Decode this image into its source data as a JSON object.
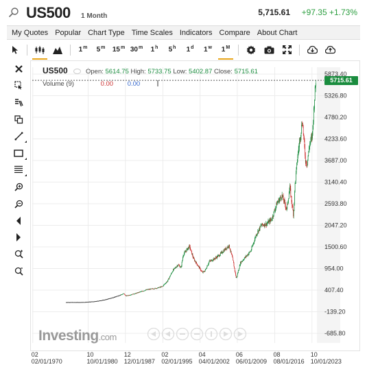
{
  "header": {
    "symbol": "US500",
    "timeframe": "1 Month",
    "price": "5,715.61",
    "change": "+97.35 +1.73%"
  },
  "menu": {
    "items": [
      "My Quotes",
      "Popular",
      "Chart Type",
      "Time Scales",
      "Indicators",
      "Compare",
      "About Chart"
    ]
  },
  "toolbar": {
    "timeframes": [
      {
        "main": "1",
        "sup": "m"
      },
      {
        "main": "5",
        "sup": "m"
      },
      {
        "main": "15",
        "sup": "m"
      },
      {
        "main": "30",
        "sup": "m"
      },
      {
        "main": "1",
        "sup": "h"
      },
      {
        "main": "5",
        "sup": "h"
      },
      {
        "main": "1",
        "sup": "d"
      },
      {
        "main": "1",
        "sup": "w"
      },
      {
        "main": "1",
        "sup": "M"
      }
    ],
    "active_timeframe": "1M"
  },
  "legend": {
    "symbol": "US500",
    "open_label": "Open:",
    "open": "5614.75",
    "high_label": "High:",
    "high": "5733.75",
    "low_label": "Low:",
    "low": "5402.87",
    "close_label": "Close:",
    "close": "5715.61",
    "volume_label": "Volume (9)",
    "volume_value": "0.00",
    "volume_ma": "0.00"
  },
  "branding": {
    "logo": "Investing",
    "logo_suffix": ".com"
  },
  "colors": {
    "up": "#1a8c3e",
    "down": "#cc2b2b",
    "accent": "#e8a51a",
    "positive": "#2a9d3e"
  },
  "chart_data": {
    "type": "candlestick",
    "title": "US500",
    "last_value": "5715.61",
    "y_ticks": [
      5873.4,
      5326.8,
      4780.2,
      4233.6,
      3687.0,
      3140.4,
      2593.8,
      2047.2,
      1500.6,
      954.0,
      407.4,
      -139.2,
      -685.8
    ],
    "y_tick_labels": [
      "5873.40",
      "5326.80",
      "4780.20",
      "4233.60",
      "3687.00",
      "3140.40",
      "2593.80",
      "2047.20",
      "1500.60",
      "954.00",
      "407.40",
      "-139.20",
      "-685.80"
    ],
    "ylim": [
      -700,
      6000
    ],
    "x_ticks_top": [
      "02",
      "10",
      "12",
      "02",
      "04",
      "06",
      "08",
      "10"
    ],
    "x_ticks_bottom": [
      "02/01/1970",
      "10/01/1980",
      "12/01/1987",
      "02/01/1995",
      "04/01/2002",
      "06/01/2009",
      "08/01/2016",
      "10/01/2023"
    ],
    "xlim": [
      1970,
      2024.7
    ],
    "series": [
      {
        "x": [
          1979.5,
          1982,
          1984,
          1986,
          1987.6,
          1988,
          1990,
          1992,
          1994,
          1995,
          1996,
          1997,
          1998,
          1998.6,
          1999,
          2000.2,
          2001,
          2002.7,
          2003.2,
          2004,
          2005,
          2006,
          2007.8,
          2008.5,
          2009.2,
          2010,
          2011,
          2012,
          2013,
          2014,
          2015,
          2016,
          2017,
          2018,
          2018.9,
          2019.5,
          2020.2,
          2020.5,
          2021,
          2021.9,
          2022.5,
          2022.8,
          2023.3,
          2023.8,
          2024.2,
          2024.5
        ],
        "values": [
          100,
          120,
          165,
          240,
          320,
          260,
          330,
          420,
          460,
          500,
          640,
          900,
          1050,
          980,
          1300,
          1520,
          1200,
          850,
          900,
          1130,
          1200,
          1300,
          1540,
          1200,
          700,
          1100,
          1250,
          1400,
          1800,
          2050,
          2080,
          2200,
          2600,
          2800,
          2450,
          3000,
          2300,
          3100,
          3800,
          4700,
          3700,
          3600,
          4100,
          4300,
          5200,
          5715.61
        ]
      }
    ]
  }
}
